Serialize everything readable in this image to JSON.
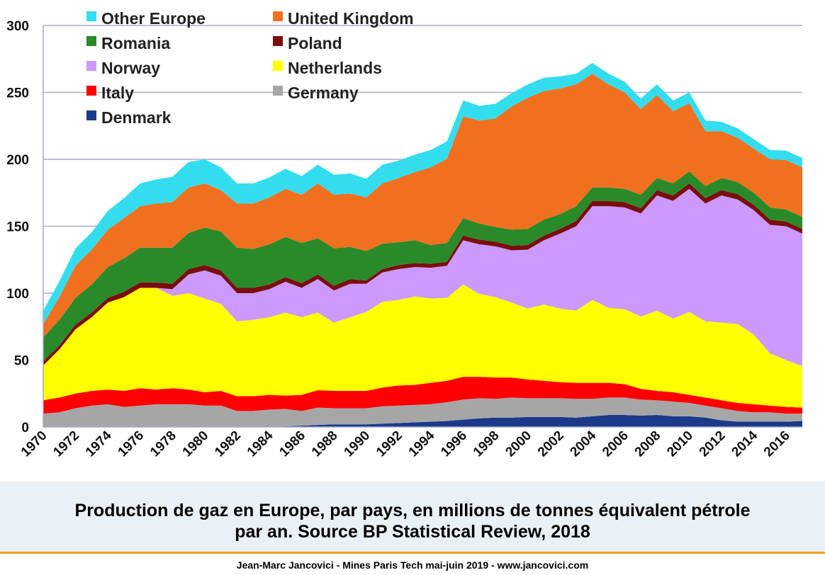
{
  "chart_data": {
    "type": "area",
    "stacked": true,
    "x": [
      1970,
      1971,
      1972,
      1973,
      1974,
      1975,
      1976,
      1977,
      1978,
      1979,
      1980,
      1981,
      1982,
      1983,
      1984,
      1985,
      1986,
      1987,
      1988,
      1989,
      1990,
      1991,
      1992,
      1993,
      1994,
      1995,
      1996,
      1997,
      1998,
      1999,
      2000,
      2001,
      2002,
      2003,
      2004,
      2005,
      2006,
      2007,
      2008,
      2009,
      2010,
      2011,
      2012,
      2013,
      2014,
      2015,
      2016,
      2017
    ],
    "x_tick_labels": [
      "1970",
      "1972",
      "1974",
      "1976",
      "1978",
      "1980",
      "1982",
      "1984",
      "1986",
      "1988",
      "1990",
      "1992",
      "1994",
      "1996",
      "1998",
      "2000",
      "2002",
      "2004",
      "2006",
      "2008",
      "2010",
      "2012",
      "2014",
      "2016"
    ],
    "y_ticks": [
      0,
      50,
      100,
      150,
      200,
      250,
      300
    ],
    "ylim": [
      0,
      300
    ],
    "xlim": [
      1970,
      2017
    ],
    "grid": "horizontal",
    "legend_position": "top-left",
    "series": [
      {
        "name": "Denmark",
        "color": "#1c3a8a",
        "values": [
          0,
          0,
          0,
          0,
          0,
          0,
          0,
          0,
          0,
          0,
          0,
          0,
          0,
          0,
          0,
          0.5,
          1,
          1.5,
          2,
          2,
          2,
          2.5,
          3,
          3.5,
          4,
          4.5,
          5.5,
          6.5,
          7,
          7,
          7.5,
          7.5,
          7.5,
          7,
          8,
          9,
          9,
          8.5,
          9,
          8,
          8,
          7,
          5,
          4,
          4,
          4,
          4,
          4.5
        ]
      },
      {
        "name": "Germany",
        "color": "#a6a6a6",
        "values": [
          10,
          11,
          14,
          16,
          17,
          15,
          16,
          17,
          17,
          17,
          16,
          16,
          12,
          12,
          13,
          13,
          11,
          13,
          12,
          12,
          12,
          13,
          13,
          13,
          13,
          14,
          15,
          15,
          14,
          15,
          14,
          14,
          14,
          14,
          13,
          13,
          13,
          12,
          11,
          11,
          10,
          9,
          9,
          8,
          7,
          7,
          6,
          5.5
        ]
      },
      {
        "name": "Italy",
        "color": "#ff0000",
        "values": [
          10,
          11,
          11,
          11,
          11,
          12,
          13,
          11,
          12,
          11,
          10,
          11,
          11,
          11,
          11,
          10,
          12,
          13,
          13,
          13,
          13,
          14,
          15,
          15,
          16,
          16,
          17,
          16,
          16,
          15,
          14,
          13,
          12,
          12,
          12,
          11,
          10,
          8,
          7,
          7,
          6,
          6,
          6,
          6,
          6,
          5,
          5,
          4.5
        ]
      },
      {
        "name": "Netherlands",
        "color": "#ffff00",
        "values": [
          26,
          36,
          48,
          55,
          65,
          70,
          75,
          76,
          69,
          72,
          70,
          65,
          56,
          57,
          58,
          62,
          58,
          58,
          51,
          55,
          59,
          64,
          64,
          66,
          63,
          62,
          69,
          62,
          60,
          56,
          53,
          57,
          55,
          54,
          62,
          56,
          56,
          54,
          60,
          55,
          62,
          57,
          58,
          59,
          52,
          39,
          35,
          31
        ]
      },
      {
        "name": "Norway",
        "color": "#cc99ff",
        "values": [
          0,
          0,
          0,
          0,
          0,
          0,
          0,
          0,
          5,
          14,
          21,
          21,
          21,
          20,
          21,
          23,
          22,
          25,
          24,
          25,
          21,
          22,
          23,
          22,
          23,
          24,
          33,
          37,
          38,
          39,
          44,
          48,
          56,
          63,
          70,
          76,
          76,
          77,
          86,
          88,
          92,
          88,
          95,
          93,
          93,
          96,
          100,
          99
        ]
      },
      {
        "name": "Poland",
        "color": "#7a0e0e",
        "values": [
          3,
          3,
          3.5,
          3.5,
          3.5,
          4,
          4,
          4,
          4,
          4,
          4,
          4,
          4,
          4,
          3.5,
          3.5,
          3.5,
          3.5,
          3.5,
          3.5,
          2.5,
          2.5,
          3,
          3,
          3,
          3,
          3.5,
          3.5,
          3.5,
          3.5,
          3.5,
          3.5,
          3.5,
          4,
          4,
          4,
          4,
          4,
          4,
          4,
          4,
          4,
          4,
          4,
          4,
          4,
          3.5,
          3.5
        ]
      },
      {
        "name": "Romania",
        "color": "#2a8a2a",
        "values": [
          18,
          19,
          20,
          21,
          23,
          25,
          26,
          26,
          27,
          27,
          28,
          29,
          30,
          29,
          30,
          30,
          30,
          27,
          28,
          24,
          22,
          19,
          17,
          17,
          14,
          14,
          13,
          12,
          11,
          12,
          12,
          12,
          11,
          11,
          10,
          10,
          10,
          10,
          9,
          9,
          9,
          9,
          9,
          9,
          9,
          9,
          9,
          9
        ]
      },
      {
        "name": "United Kingdom",
        "color": "#f07020",
        "values": [
          10,
          17,
          24,
          26,
          28,
          30,
          31,
          33,
          34,
          34,
          33,
          31,
          33,
          34,
          35,
          36,
          36,
          41,
          40,
          40,
          40,
          45,
          48,
          51,
          58,
          63,
          76,
          77,
          81,
          92,
          98,
          96,
          94,
          91,
          85,
          77,
          72,
          64,
          62,
          54,
          51,
          41,
          35,
          33,
          33,
          36,
          37,
          37
        ]
      },
      {
        "name": "Other Europe",
        "color": "#33ddee",
        "values": [
          10,
          12,
          13,
          13,
          14,
          15,
          17,
          18,
          19,
          19,
          18,
          17,
          15,
          15,
          15,
          15,
          14,
          14,
          15,
          15,
          14,
          14,
          13,
          13,
          13,
          13,
          12,
          11,
          11,
          10,
          10,
          10,
          9,
          8,
          8,
          8,
          8,
          8,
          8,
          8,
          8,
          8,
          7,
          7,
          7,
          7,
          7,
          7
        ]
      }
    ],
    "legend": [
      "Other Europe",
      "United Kingdom",
      "Romania",
      "Poland",
      "Norway",
      "Netherlands",
      "Italy",
      "Germany",
      "Denmark"
    ]
  },
  "caption": {
    "line1": "Production de gaz en Europe, par pays, en millions de tonnes équivalent pétrole",
    "line2": "par an. Source BP Statistical Review, 2018"
  },
  "footer": "Jean-Marc Jancovici - Mines Paris Tech mai-juin 2019 - www.jancovici.com"
}
